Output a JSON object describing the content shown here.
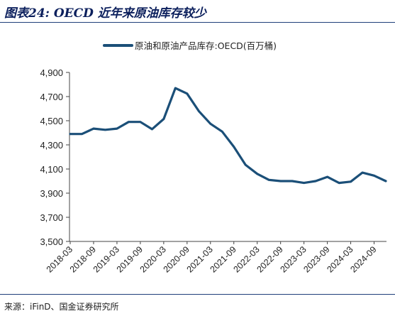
{
  "header": {
    "title": "图表24: OECD 近年来原油库存较少"
  },
  "footer": {
    "source": "来源：iFinD、国金证券研究所"
  },
  "chart_data": {
    "type": "line",
    "title": "",
    "xlabel": "",
    "ylabel": "",
    "ylim": [
      3500,
      4900
    ],
    "yticks": [
      "4,900",
      "4,700",
      "4,500",
      "4,300",
      "4,100",
      "3,900",
      "3,700",
      "3,500"
    ],
    "ytick_values": [
      4900,
      4700,
      4500,
      4300,
      4100,
      3900,
      3700,
      3500
    ],
    "xtick_labels": [
      "2018-03",
      "2018-09",
      "2019-03",
      "2019-09",
      "2020-03",
      "2020-09",
      "2021-03",
      "2021-09",
      "2022-03",
      "2022-09",
      "2023-03",
      "2023-09",
      "2024-03",
      "2024-09"
    ],
    "grid": false,
    "legend_position": "top",
    "series": [
      {
        "name": "原油和原油产品库存:OECD(百万桶)",
        "color": "#1b4f78",
        "x": [
          "2018-03",
          "2018-06",
          "2018-09",
          "2018-12",
          "2019-03",
          "2019-06",
          "2019-09",
          "2019-12",
          "2020-03",
          "2020-06",
          "2020-09",
          "2020-12",
          "2021-03",
          "2021-06",
          "2021-09",
          "2021-12",
          "2022-03",
          "2022-06",
          "2022-09",
          "2022-12",
          "2023-03",
          "2023-06",
          "2023-09",
          "2023-12",
          "2024-03",
          "2024-06",
          "2024-09",
          "2024-12"
        ],
        "values": [
          4390,
          4390,
          4435,
          4425,
          4435,
          4490,
          4490,
          4430,
          4515,
          4770,
          4725,
          4580,
          4475,
          4410,
          4285,
          4135,
          4060,
          4010,
          4000,
          4000,
          3985,
          4000,
          4035,
          3985,
          3995,
          4070,
          4045,
          4000
        ]
      }
    ]
  }
}
